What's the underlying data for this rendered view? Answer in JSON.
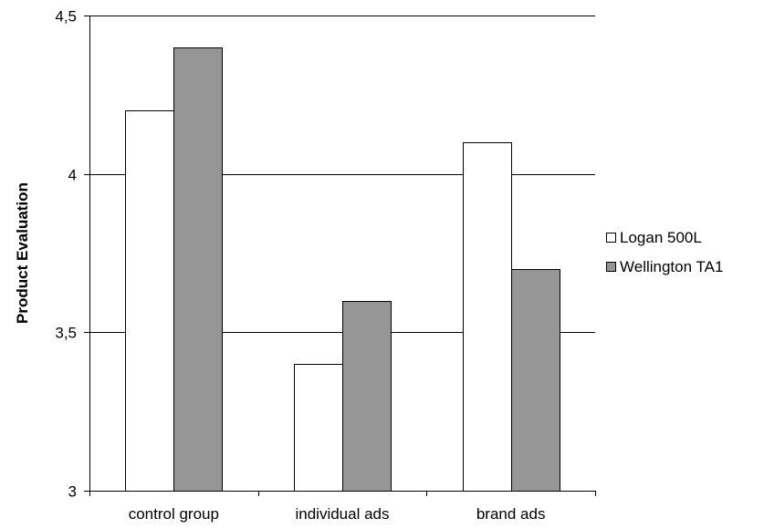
{
  "chart_data": {
    "type": "bar",
    "title": "",
    "xlabel": "",
    "ylabel": "Product Evaluation",
    "ylim": [
      3,
      4.5
    ],
    "yticks": [
      3,
      3.5,
      4,
      4.5
    ],
    "ytick_labels": [
      "3",
      "3,5",
      "4",
      "4,5"
    ],
    "categories": [
      "control group",
      "individual ads",
      "brand ads"
    ],
    "series": [
      {
        "name": "Logan 500L",
        "values": [
          4.2,
          3.4,
          4.1
        ],
        "color": "#ffffff"
      },
      {
        "name": "Wellington TA1",
        "values": [
          4.4,
          3.6,
          3.7
        ],
        "color": "#969696"
      }
    ],
    "grid": true,
    "legend_position": "right"
  }
}
